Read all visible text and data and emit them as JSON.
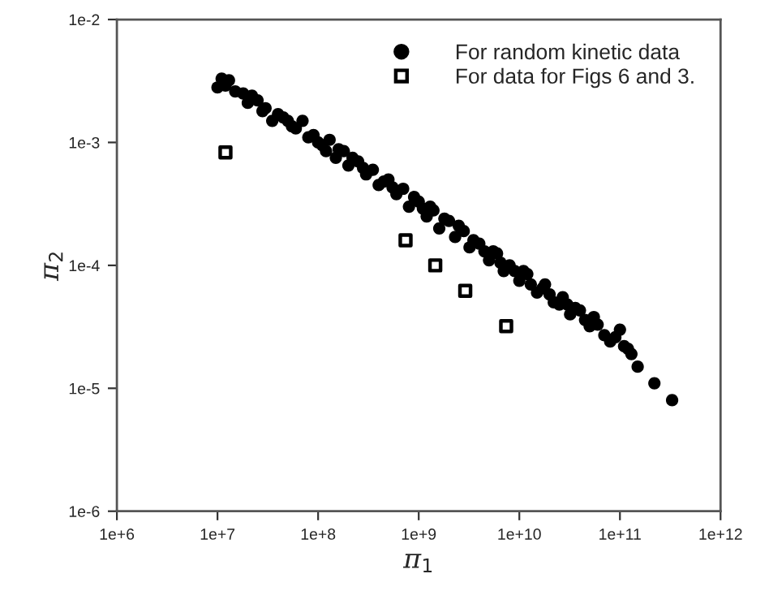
{
  "chart_data": {
    "type": "scatter",
    "xlabel": "π$_{1}$",
    "ylabel": "π$_{2}$",
    "log": "xy",
    "grid": false,
    "legend": "top right",
    "xlim": [
      1000000.0,
      1000000000000.0
    ],
    "ylim": [
      1e-06,
      0.01
    ],
    "xticks": [
      {
        "value": 1000000.0,
        "label": "1e+6"
      },
      {
        "value": 10000000.0,
        "label": "1e+7"
      },
      {
        "value": 100000000.0,
        "label": "1e+8"
      },
      {
        "value": 1000000000.0,
        "label": "1e+9"
      },
      {
        "value": 10000000000.0,
        "label": "1e+10"
      },
      {
        "value": 100000000000.0,
        "label": "1e+11"
      },
      {
        "value": 1000000000000.0,
        "label": "1e+12"
      }
    ],
    "yticks": [
      {
        "value": 1e-06,
        "label": "1e-6"
      },
      {
        "value": 1e-05,
        "label": "1e-5"
      },
      {
        "value": 0.0001,
        "label": "1e-4"
      },
      {
        "value": 0.001,
        "label": "1e-3"
      },
      {
        "value": 0.01,
        "label": "1e-2"
      }
    ],
    "series": [
      {
        "name": "For random kinetic data",
        "color": "#000000",
        "marker": "circle",
        "x": [
          10000000.0,
          11000000.0,
          13000000.0,
          15000000.0,
          18000000.0,
          20000000.0,
          25000000.0,
          30000000.0,
          35000000.0,
          40000000.0,
          50000000.0,
          60000000.0,
          70000000.0,
          80000000.0,
          100000000.0,
          120000000.0,
          130000000.0,
          150000000.0,
          180000000.0,
          200000000.0,
          250000000.0,
          300000000.0,
          350000000.0,
          400000000.0,
          500000000.0,
          600000000.0,
          700000000.0,
          800000000.0,
          1000000000.0,
          1200000000.0,
          1400000000.0,
          1600000000.0,
          2000000000.0,
          2300000000.0,
          2800000000.0,
          3200000000.0,
          4000000000.0,
          5000000000.0,
          6000000000.0,
          7000000000.0,
          8000000000.0,
          10000000000.0,
          12000000000.0,
          15000000000.0,
          18000000000.0,
          22000000000.0,
          27000000000.0,
          32000000000.0,
          40000000000.0,
          50000000000.0,
          60000000000.0,
          70000000000.0,
          90000000000.0,
          100000000000.0,
          110000000000.0,
          130000000000.0,
          150000000000.0,
          220000000000.0,
          330000000000.0,
          12000000.0,
          22000000.0,
          28000000.0,
          45000000.0,
          55000000.0,
          90000000.0,
          110000000.0,
          160000000.0,
          220000000.0,
          280000000.0,
          450000000.0,
          550000000.0,
          900000000.0,
          1100000000.0,
          1300000000.0,
          1800000000.0,
          2500000000.0,
          3500000000.0,
          4500000000.0,
          5500000000.0,
          6500000000.0,
          9000000000.0,
          11000000000.0,
          13000000000.0,
          17000000000.0,
          20000000000.0,
          25000000000.0,
          30000000000.0,
          36000000000.0,
          45000000000.0,
          55000000000.0,
          80000000000.0,
          120000000000.0
        ],
        "values": [
          0.0028,
          0.0033,
          0.0032,
          0.0026,
          0.0025,
          0.0021,
          0.0022,
          0.0019,
          0.0015,
          0.0017,
          0.0015,
          0.0013,
          0.0015,
          0.0011,
          0.001,
          0.00085,
          0.00105,
          0.00075,
          0.00085,
          0.00065,
          0.0007,
          0.00055,
          0.0006,
          0.00045,
          0.0005,
          0.00038,
          0.00042,
          0.0003,
          0.00033,
          0.00025,
          0.00028,
          0.0002,
          0.00023,
          0.00017,
          0.00019,
          0.00014,
          0.00015,
          0.00011,
          0.000125,
          9e-05,
          0.0001,
          7.5e-05,
          8.5e-05,
          6e-05,
          7e-05,
          5e-05,
          5.5e-05,
          4e-05,
          4.3e-05,
          3.2e-05,
          3.3e-05,
          2.7e-05,
          2.6e-05,
          3e-05,
          2.2e-05,
          1.9e-05,
          1.5e-05,
          1.1e-05,
          8e-06,
          0.0029,
          0.0024,
          0.0018,
          0.0016,
          0.00135,
          0.00115,
          0.00095,
          0.00088,
          0.00075,
          0.00062,
          0.00048,
          0.00043,
          0.00036,
          0.00029,
          0.0003,
          0.00024,
          0.00021,
          0.00016,
          0.00013,
          0.00013,
          0.000105,
          9e-05,
          9e-05,
          7e-05,
          6.5e-05,
          5.8e-05,
          4.8e-05,
          4.8e-05,
          4.5e-05,
          3.6e-05,
          3.8e-05,
          2.4e-05,
          2.1e-05
        ]
      },
      {
        "name": "For data for Figs 6 and 3.",
        "color": "#000000",
        "marker": "square",
        "x": [
          12000000.0,
          740000000.0,
          1460000000.0,
          2900000000.0,
          7400000000.0
        ],
        "values": [
          0.00083,
          0.00016,
          0.0001,
          6.2e-05,
          3.2e-05
        ]
      }
    ]
  }
}
